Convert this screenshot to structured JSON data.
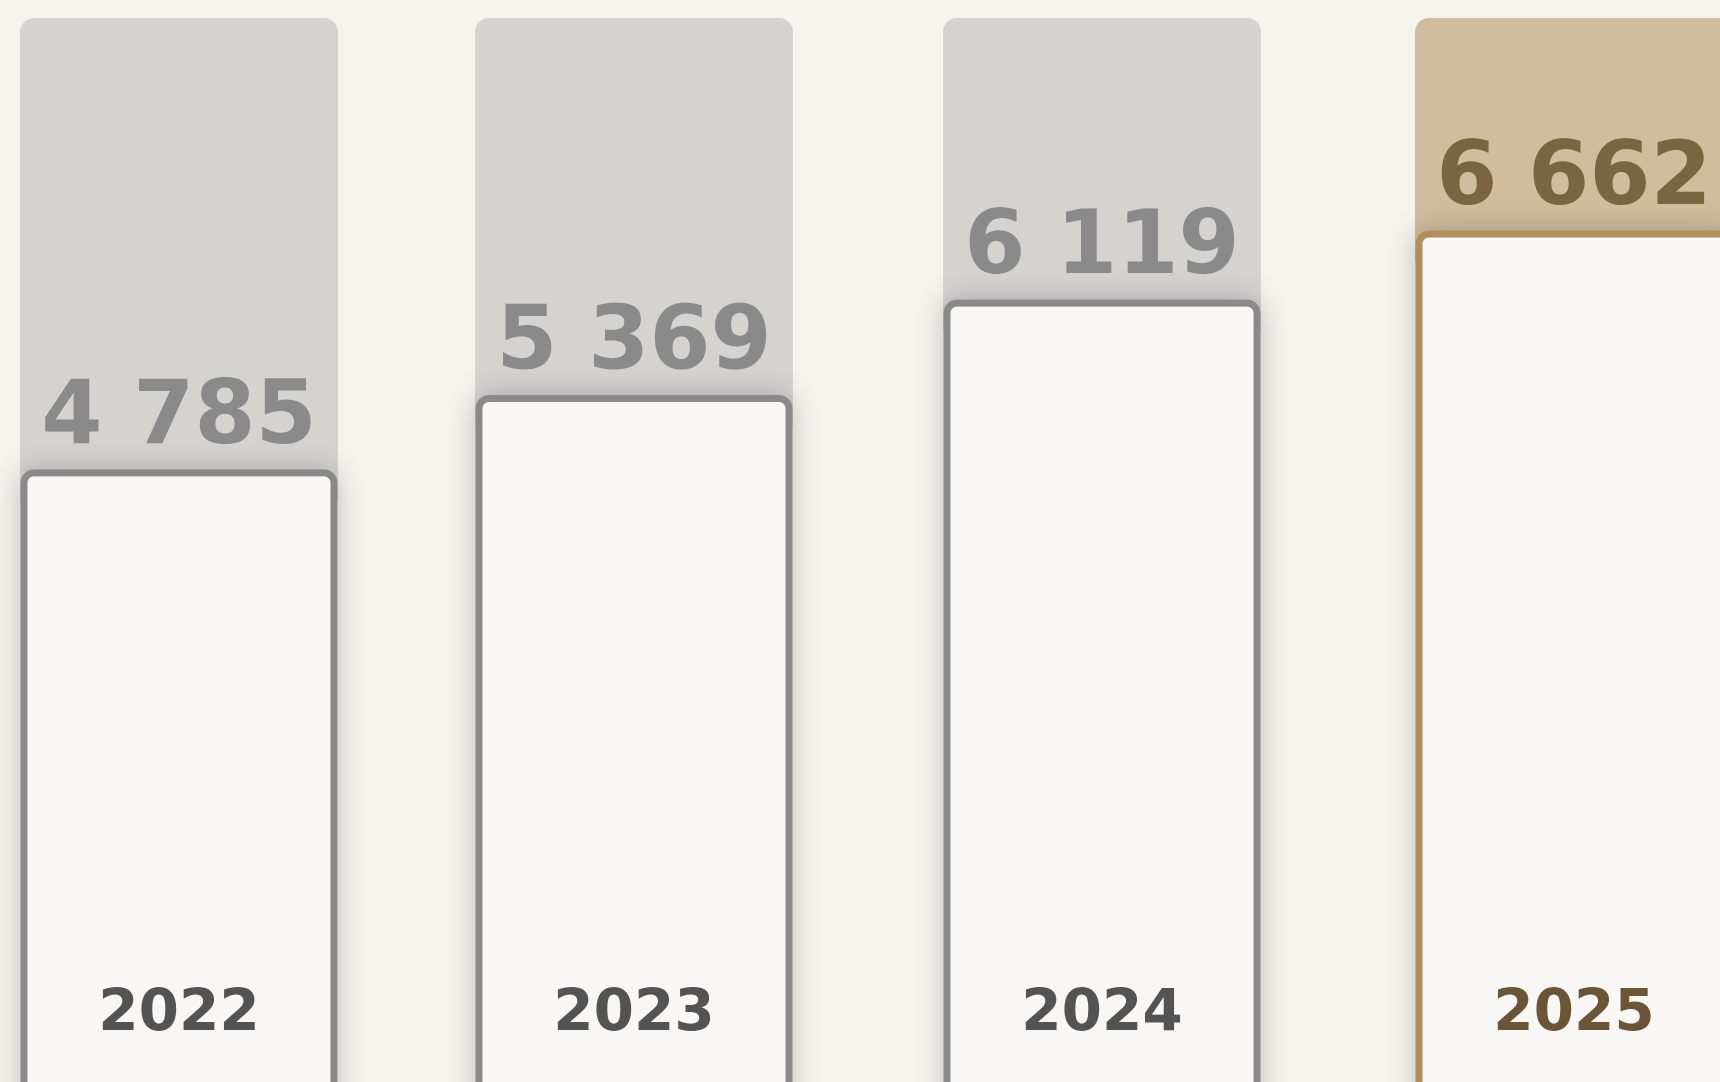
{
  "chart_data": {
    "type": "bar",
    "categories": [
      "2022",
      "2023",
      "2024",
      "2025"
    ],
    "values": [
      4785,
      5369,
      6119,
      6662
    ],
    "value_labels": [
      "4 785",
      "5 369",
      "6 119",
      "6 662"
    ],
    "colors": [
      "#8a8a8a",
      "#8a8a8a",
      "#8a8a8a",
      "#b08f5c"
    ],
    "ylim": [
      0,
      8500
    ]
  }
}
